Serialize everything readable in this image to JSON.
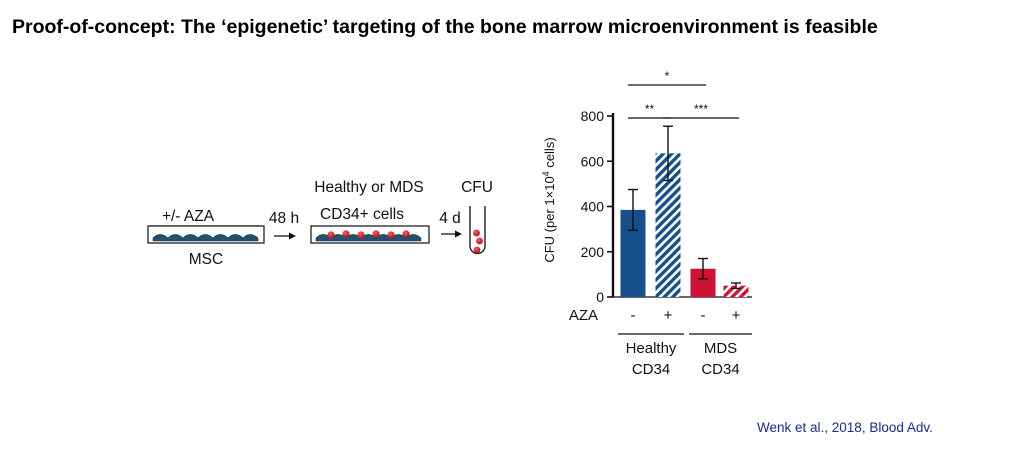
{
  "slide": {
    "title": "Proof-of-concept: The ‘epigenetic’ targeting of the bone marrow microenvironment is feasible",
    "citation": "Wenk et al., 2018, Blood Adv."
  },
  "schematic": {
    "treatment_label": "+/- AZA",
    "first_vessel_label": "MSC",
    "time_1": "48 h",
    "coculture_label_line1": "Healthy or MDS",
    "coculture_label_line2": "CD34+ cells",
    "time_2": "4 d",
    "tube_label": "CFU"
  },
  "chart_data": {
    "type": "bar",
    "ylabel": "CFU (per 1×10⁴ cells)",
    "ylabel_main": "CFU (per 1×10",
    "ylabel_sup": "4",
    "ylabel_end": " cells)",
    "ylim": [
      0,
      800
    ],
    "yticks": [
      "0",
      "200",
      "400",
      "600",
      "800"
    ],
    "treatment_row_label": "AZA",
    "bars": [
      {
        "group": "Healthy CD34",
        "aza": "-",
        "value": 385,
        "err": 90,
        "color": "#174f8c",
        "hatched": false
      },
      {
        "group": "Healthy CD34",
        "aza": "+",
        "value": 635,
        "err": 120,
        "color": "#174f8c",
        "hatched": true
      },
      {
        "group": "MDS CD34",
        "aza": "-",
        "value": 125,
        "err": 45,
        "color": "#d01234",
        "hatched": false
      },
      {
        "group": "MDS CD34",
        "aza": "+",
        "value": 50,
        "err": 12,
        "color": "#d01234",
        "hatched": true
      }
    ],
    "groups": [
      {
        "line1": "Healthy",
        "line2": "CD34"
      },
      {
        "line1": "MDS",
        "line2": "CD34"
      }
    ],
    "significance": [
      {
        "from": 0,
        "to": 2,
        "label": "*"
      },
      {
        "from": 0,
        "to": 1,
        "label": "**"
      },
      {
        "from": 1,
        "to": 3,
        "label": "***"
      }
    ],
    "grid": false
  }
}
